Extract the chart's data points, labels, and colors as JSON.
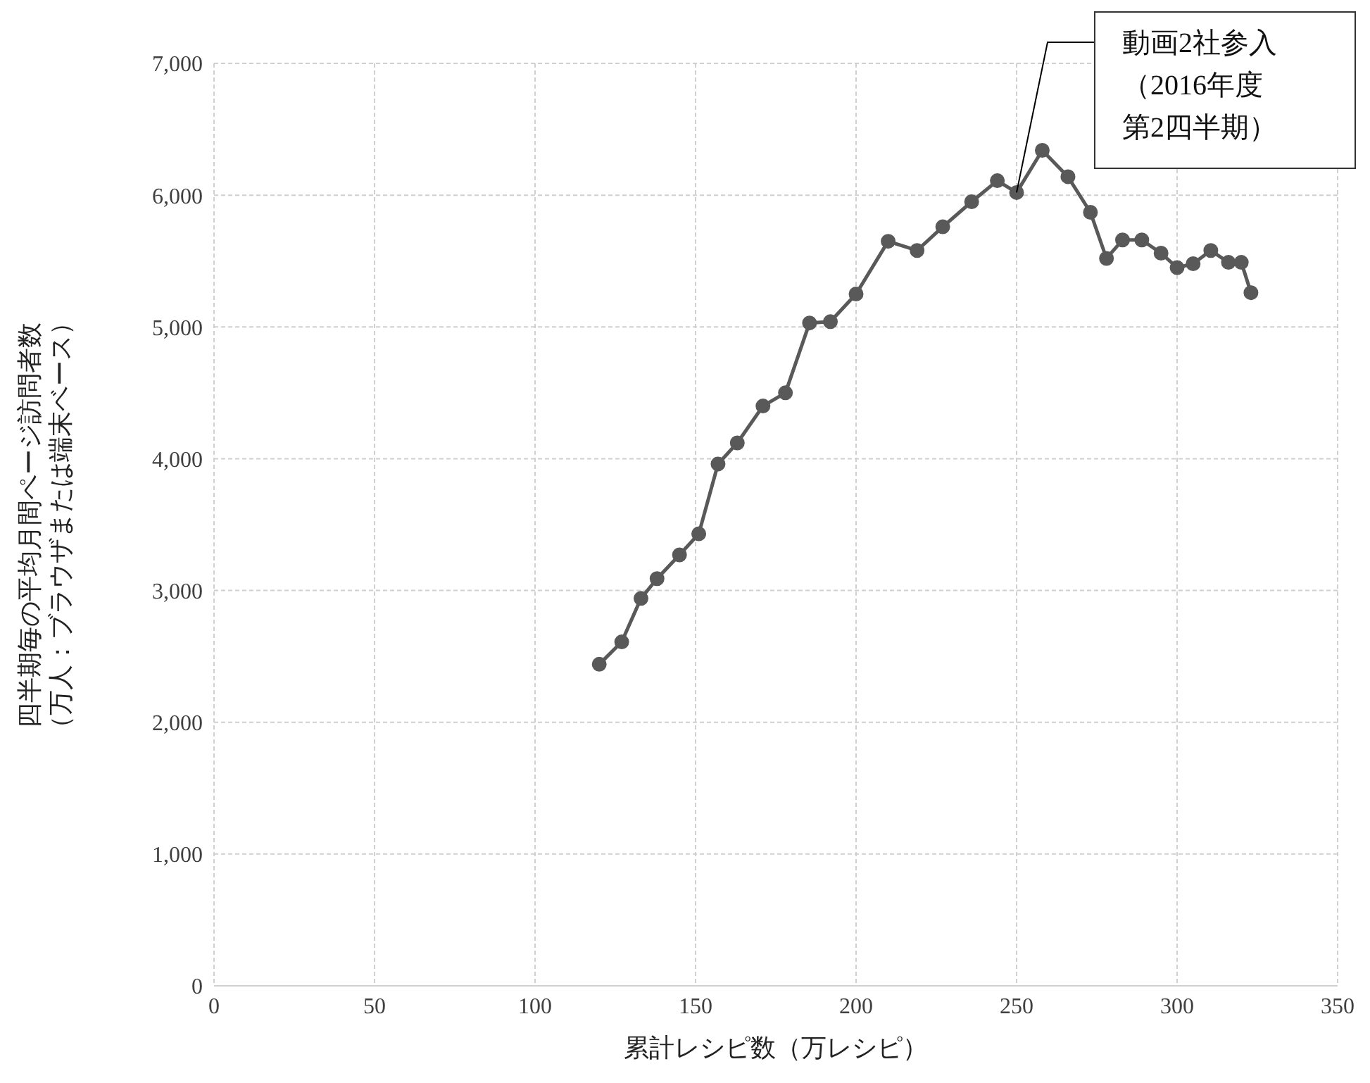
{
  "chart_data": {
    "type": "line",
    "xlabel": "累計レシピ数（万レシピ）",
    "ylabel": "四半期毎の平均月間ページ訪問者数（万人：ブラウザまたは端末ベース）",
    "x": [
      120,
      127,
      133,
      138,
      145,
      151,
      157,
      163,
      171,
      178,
      185.5,
      192,
      200,
      210,
      219,
      227,
      236,
      244,
      250,
      258,
      266,
      273,
      278,
      283,
      289,
      295,
      300,
      305,
      310.5,
      316,
      320,
      323
    ],
    "series": [
      {
        "color": "#595959",
        "values": [
          2440,
          2610,
          2940,
          3090,
          3270,
          3430,
          3960,
          4120,
          4400,
          4500,
          5030,
          5040,
          5250,
          5650,
          5580,
          5760,
          5950,
          6110,
          6020,
          6340,
          6140,
          5870,
          5520,
          5660,
          5660,
          5560,
          5450,
          5480,
          5580,
          5490,
          5490,
          5260
        ]
      }
    ],
    "xlim": [
      0,
      350
    ],
    "xticks": [
      0,
      50,
      100,
      150,
      200,
      250,
      300,
      350
    ],
    "ylim": [
      0,
      7000
    ],
    "yticks": [
      0,
      {
        "value": 1000,
        "label": "1,000"
      },
      {
        "value": 2000,
        "label": "2,000"
      },
      {
        "value": 3000,
        "label": "3,000"
      },
      {
        "value": 4000,
        "label": "4,000"
      },
      {
        "value": 5000,
        "label": "5,000"
      },
      {
        "value": 6000,
        "label": "6,000"
      },
      {
        "value": 7000,
        "label": "7,000"
      }
    ],
    "grid": true,
    "marker": "circle",
    "line_style": "solid",
    "annotations": [
      {
        "text": "動画2社参入（2016年度第2四半期）",
        "x": 250,
        "y": 6020
      }
    ]
  }
}
